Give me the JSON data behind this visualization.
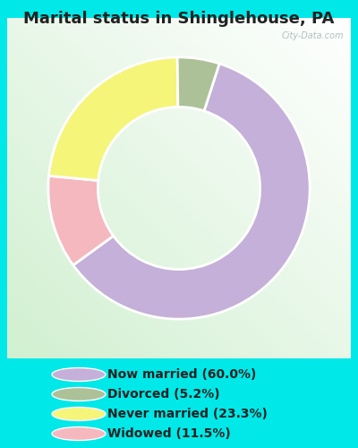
{
  "title": "Marital status in Shinglehouse, PA",
  "values": [
    60.0,
    11.5,
    23.3,
    5.2
  ],
  "colors": [
    "#c4b0d8",
    "#f5b8bf",
    "#f5f57a",
    "#adc199"
  ],
  "legend_labels": [
    "Now married (60.0%)",
    "Divorced (5.2%)",
    "Never married (23.3%)",
    "Widowed (11.5%)"
  ],
  "legend_colors": [
    "#c4b0d8",
    "#adc199",
    "#f5f57a",
    "#f5b8bf"
  ],
  "bg_outer": "#00e8e8",
  "bg_chart": "#e8f5e8",
  "title_fontsize": 13,
  "title_color": "#222222",
  "watermark": "City-Data.com",
  "donut_width": 0.38,
  "startangle": 72,
  "legend_fontsize": 10
}
